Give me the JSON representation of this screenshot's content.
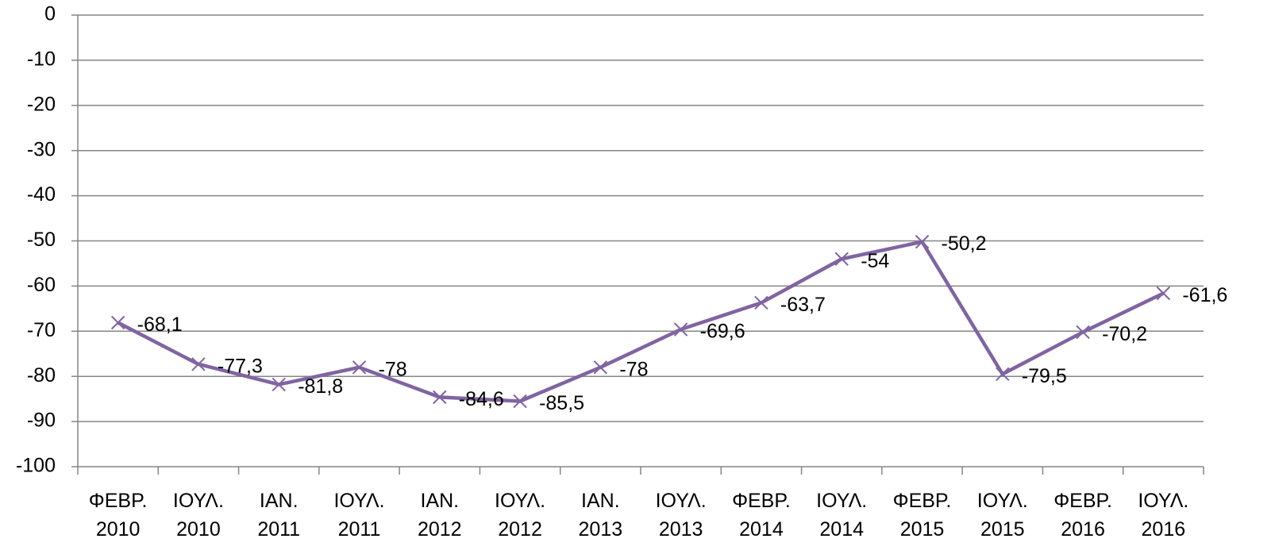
{
  "chart_data": {
    "type": "line",
    "categories": [
      "ΦΕΒΡ. 2010",
      "ΙΟΥΛ. 2010",
      "ΙΑΝ. 2011",
      "ΙΟΥΛ. 2011",
      "ΙΑΝ. 2012",
      "ΙΟΥΛ. 2012",
      "ΙΑΝ. 2013",
      "ΙΟΥΛ. 2013",
      "ΦΕΒΡ. 2014",
      "ΙΟΥΛ. 2014",
      "ΦΕΒΡ. 2015",
      "ΙΟΥΛ. 2015",
      "ΦΕΒΡ. 2016",
      "ΙΟΥΛ. 2016"
    ],
    "values": [
      -68.1,
      -77.3,
      -81.8,
      -78,
      -84.6,
      -85.5,
      -78,
      -69.6,
      -63.7,
      -54,
      -50.2,
      -79.5,
      -70.2,
      -61.6
    ],
    "value_labels": [
      "-68,1",
      "-77,3",
      "-81,8",
      "-78",
      "-84,6",
      "-85,5",
      "-78",
      "-69,6",
      "-63,7",
      "-54",
      "-50,2",
      "-79,5",
      "-70,2",
      "-61,6"
    ],
    "color": "#8064a2",
    "ylim": [
      -100,
      0
    ],
    "yticks": [
      0,
      -10,
      -20,
      -30,
      -40,
      -50,
      -60,
      -70,
      -80,
      -90,
      -100
    ],
    "grid": true
  }
}
